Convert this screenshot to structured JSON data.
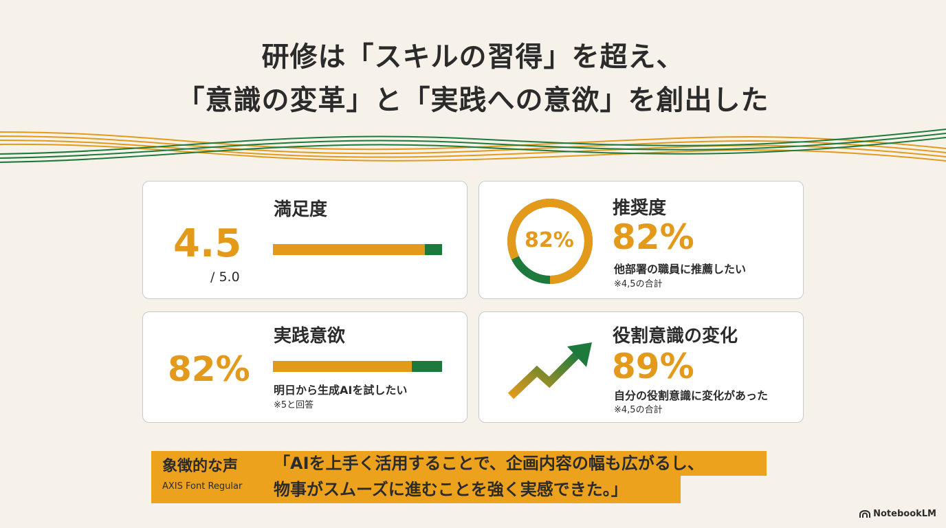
{
  "title": {
    "line1": "研修は「スキルの習得」を超え、",
    "line2": "「意識の変革」と「実践への意欲」を創出した"
  },
  "colors": {
    "accent": "#e39a1b",
    "green": "#1e7a3c",
    "background": "#f6f2ea"
  },
  "cards": {
    "satisfaction": {
      "label": "満足度",
      "value": "4.5",
      "scale": "/ 5.0",
      "bar_fraction": 0.9
    },
    "recommend": {
      "label": "推奨度",
      "ring_value": "82%",
      "value": "82%",
      "desc": "他部署の職員に推薦したい",
      "note": "※4,5の合計",
      "ring_fraction": 0.82
    },
    "practice": {
      "label": "実践意欲",
      "value": "82%",
      "desc": "明日から生成AIを試したい",
      "note": "※5と回答",
      "bar_fraction": 0.82
    },
    "role": {
      "label": "役割意識の変化",
      "value": "89%",
      "desc": "自分の役割意識に変化があった",
      "note": "※4,5の合計",
      "icon": "trend-up-arrow-icon"
    }
  },
  "quote": {
    "label": "象徴的な声",
    "font_note": "AXIS Font Regular",
    "line1": "「AIを上手く活用することで、企画内容の幅も広がるし、",
    "line2": "物事がスムーズに進むことを強く実感できた。」"
  },
  "brand": {
    "name": "NotebookLM",
    "icon": "notebook-logo-icon"
  }
}
